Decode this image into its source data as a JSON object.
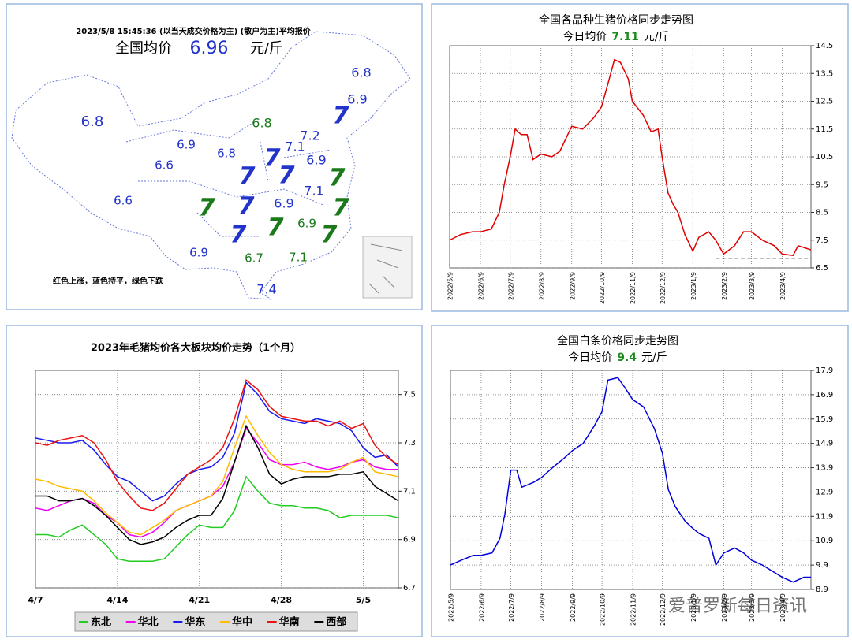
{
  "map": {
    "title": "2023/5/8  15:45:36 (以当天成交价格为主)  (散户为主)平均报价",
    "avg_label": "全国均价",
    "avg_value": 6.96,
    "avg_unit": "元/斤",
    "note": "红色上涨，蓝色持平，绿色下跌",
    "regions": [
      {
        "value": 6.8,
        "color": "#2233cc"
      },
      {
        "value": 6.9,
        "color": "#2233cc"
      },
      {
        "value": 7,
        "color": "#2233cc"
      },
      {
        "value": 6.8,
        "color": "#2233cc"
      },
      {
        "value": 6.8,
        "color": "#1a7a1a"
      },
      {
        "value": 7.2,
        "color": "#2233cc"
      },
      {
        "value": 6.9,
        "color": "#2233cc"
      },
      {
        "value": 7.1,
        "color": "#2233cc"
      },
      {
        "value": 6.8,
        "color": "#2233cc"
      },
      {
        "value": 7,
        "color": "#2233cc"
      },
      {
        "value": 6.6,
        "color": "#2233cc"
      },
      {
        "value": 6.9,
        "color": "#2233cc"
      },
      {
        "value": 7,
        "color": "#2233cc"
      },
      {
        "value": 7,
        "color": "#2233cc"
      },
      {
        "value": 7,
        "color": "#1a7a1a"
      },
      {
        "value": 7.1,
        "color": "#2233cc"
      },
      {
        "value": 6.6,
        "color": "#2233cc"
      },
      {
        "value": 7,
        "color": "#1a7a1a"
      },
      {
        "value": 7,
        "color": "#2233cc"
      },
      {
        "value": 6.9,
        "color": "#2233cc"
      },
      {
        "value": 7,
        "color": "#1a7a1a"
      },
      {
        "value": 7,
        "color": "#1a7a1a"
      },
      {
        "value": 6.9,
        "color": "#1a7a1a"
      },
      {
        "value": 7,
        "color": "#2233cc"
      },
      {
        "value": 7,
        "color": "#1a7a1a"
      },
      {
        "value": 6.9,
        "color": "#2233cc"
      },
      {
        "value": 6.7,
        "color": "#1a7a1a"
      },
      {
        "value": 7.1,
        "color": "#1a7a1a"
      },
      {
        "value": 7.4,
        "color": "#2233cc"
      }
    ]
  },
  "watermark": "爱普罗新每日资讯",
  "chart_data": [
    {
      "type": "line",
      "title": "全国各品种生猪价格同步走势图",
      "subtitle": {
        "label": "今日均价",
        "value": 7.11,
        "unit": "元/斤"
      },
      "x": [
        "2022/5/9",
        "2022/5/20",
        "2022/6/1",
        "2022/6/9",
        "2022/6/20",
        "2022/6/28",
        "2022/7/3",
        "2022/7/9",
        "2022/7/14",
        "2022/7/20",
        "2022/7/26",
        "2022/8/1",
        "2022/8/9",
        "2022/8/20",
        "2022/8/28",
        "2022/9/9",
        "2022/9/20",
        "2022/10/1",
        "2022/10/9",
        "2022/10/16",
        "2022/10/22",
        "2022/10/28",
        "2022/11/5",
        "2022/11/9",
        "2022/11/20",
        "2022/11/28",
        "2022/12/5",
        "2022/12/9",
        "2022/12/15",
        "2022/12/20",
        "2022/12/25",
        "2023/1/1",
        "2023/1/9",
        "2023/1/15",
        "2023/1/25",
        "2023/2/1",
        "2023/2/9",
        "2023/2/20",
        "2023/3/1",
        "2023/3/9",
        "2023/3/20",
        "2023/4/1",
        "2023/4/9",
        "2023/4/20",
        "2023/4/25",
        "2023/5/8"
      ],
      "series": [
        {
          "color": "#e00000",
          "values": [
            7.5,
            7.7,
            7.8,
            7.8,
            7.9,
            8.5,
            9.5,
            10.5,
            11.5,
            11.3,
            11.3,
            10.4,
            10.6,
            10.5,
            10.7,
            11.6,
            11.5,
            11.9,
            12.3,
            13.2,
            14.0,
            13.9,
            13.3,
            12.5,
            12.0,
            11.4,
            11.5,
            10.5,
            9.2,
            8.8,
            8.5,
            7.7,
            7.1,
            7.6,
            7.8,
            7.5,
            7.0,
            7.3,
            7.8,
            7.8,
            7.5,
            7.3,
            7.0,
            6.95,
            7.3,
            7.15
          ]
        }
      ],
      "hline": {
        "value": 6.85,
        "x": [
          "2023/2/1",
          "2023/5/8"
        ]
      },
      "xlim": [
        "2022/5/9",
        "2023/5/8"
      ],
      "xticks": [
        "2022/5/9",
        "2022/6/9",
        "2022/7/9",
        "2022/8/9",
        "2022/9/9",
        "2022/10/9",
        "2022/11/9",
        "2022/12/9",
        "2023/1/9",
        "2023/2/9",
        "2023/3/9",
        "2023/4/9"
      ],
      "ylim": [
        6.5,
        14.5
      ],
      "yticks": [
        6.5,
        7.5,
        8.5,
        9.5,
        10.5,
        11.5,
        12.5,
        13.5,
        14.5
      ],
      "grid": true
    },
    {
      "type": "line",
      "title": "2023年毛猪均价各大板块均价走势（1个月）",
      "categories": [
        "4/7",
        null,
        null,
        null,
        null,
        null,
        null,
        "4/14",
        null,
        null,
        null,
        null,
        null,
        null,
        "4/21",
        null,
        null,
        null,
        null,
        null,
        null,
        "4/28",
        null,
        null,
        null,
        null,
        null,
        null,
        "5/5",
        null,
        null,
        null
      ],
      "series": [
        {
          "name": "东北",
          "color": "#22cc22",
          "values": [
            6.92,
            6.92,
            6.91,
            6.94,
            6.96,
            6.92,
            6.88,
            6.82,
            6.81,
            6.81,
            6.81,
            6.82,
            6.87,
            6.92,
            6.96,
            6.95,
            6.95,
            7.02,
            7.16,
            7.1,
            7.05,
            7.04,
            7.04,
            7.03,
            7.03,
            7.02,
            6.99,
            7.0,
            7.0,
            7.0,
            7.0,
            6.99
          ]
        },
        {
          "name": "华北",
          "color": "#ee00ee",
          "values": [
            7.03,
            7.02,
            7.04,
            7.06,
            7.07,
            7.05,
            7.0,
            6.97,
            6.92,
            6.91,
            6.93,
            6.97,
            7.02,
            7.04,
            7.06,
            7.08,
            7.12,
            7.22,
            7.36,
            7.3,
            7.23,
            7.21,
            7.21,
            7.22,
            7.2,
            7.19,
            7.2,
            7.22,
            7.23,
            7.2,
            7.19,
            7.19
          ]
        },
        {
          "name": "华东",
          "color": "#1a1aee",
          "values": [
            7.32,
            7.31,
            7.3,
            7.3,
            7.31,
            7.27,
            7.21,
            7.16,
            7.14,
            7.1,
            7.06,
            7.08,
            7.13,
            7.17,
            7.19,
            7.2,
            7.24,
            7.34,
            7.55,
            7.5,
            7.43,
            7.4,
            7.39,
            7.38,
            7.4,
            7.39,
            7.38,
            7.35,
            7.28,
            7.24,
            7.25,
            7.2
          ]
        },
        {
          "name": "华中",
          "color": "#ffbb00",
          "values": [
            7.15,
            7.14,
            7.12,
            7.11,
            7.1,
            7.06,
            7.01,
            6.97,
            6.93,
            6.92,
            6.95,
            6.98,
            7.02,
            7.04,
            7.06,
            7.08,
            7.14,
            7.28,
            7.41,
            7.33,
            7.26,
            7.21,
            7.19,
            7.18,
            7.18,
            7.18,
            7.19,
            7.22,
            7.24,
            7.18,
            7.17,
            7.16
          ]
        },
        {
          "name": "华南",
          "color": "#ee1111",
          "values": [
            7.3,
            7.29,
            7.31,
            7.32,
            7.33,
            7.3,
            7.23,
            7.14,
            7.08,
            7.03,
            7.02,
            7.05,
            7.11,
            7.17,
            7.2,
            7.23,
            7.28,
            7.4,
            7.56,
            7.52,
            7.45,
            7.41,
            7.4,
            7.39,
            7.39,
            7.37,
            7.39,
            7.36,
            7.38,
            7.29,
            7.24,
            7.21
          ]
        },
        {
          "name": "西部",
          "color": "#000000",
          "values": [
            7.08,
            7.08,
            7.06,
            7.06,
            7.07,
            7.04,
            7.0,
            6.95,
            6.9,
            6.88,
            6.89,
            6.91,
            6.95,
            6.98,
            7.0,
            7.0,
            7.07,
            7.22,
            7.37,
            7.28,
            7.17,
            7.13,
            7.15,
            7.16,
            7.16,
            7.16,
            7.17,
            7.17,
            7.18,
            7.12,
            7.09,
            7.06
          ]
        }
      ],
      "ylim": [
        6.7,
        7.6
      ],
      "yticks": [
        6.7,
        6.9,
        7.1,
        7.3,
        7.5
      ],
      "grid": true,
      "legend": "bottom"
    },
    {
      "type": "line",
      "title": "全国白条价格同步走势图",
      "subtitle": {
        "label": "今日均价",
        "value": 9.4,
        "unit": "元/斤"
      },
      "x": [
        "2022/5/9",
        "2022/5/20",
        "2022/6/1",
        "2022/6/9",
        "2022/6/20",
        "2022/6/28",
        "2022/7/3",
        "2022/7/9",
        "2022/7/15",
        "2022/7/20",
        "2022/7/26",
        "2022/8/1",
        "2022/8/9",
        "2022/8/20",
        "2022/9/1",
        "2022/9/9",
        "2022/9/20",
        "2022/10/1",
        "2022/10/9",
        "2022/10/15",
        "2022/10/25",
        "2022/11/1",
        "2022/11/9",
        "2022/11/20",
        "2022/12/1",
        "2022/12/9",
        "2022/12/15",
        "2022/12/22",
        "2023/1/1",
        "2023/1/9",
        "2023/1/15",
        "2023/1/25",
        "2023/2/1",
        "2023/2/9",
        "2023/2/20",
        "2023/3/1",
        "2023/3/9",
        "2023/3/20",
        "2023/4/1",
        "2023/4/9",
        "2023/4/20",
        "2023/5/1",
        "2023/5/8"
      ],
      "series": [
        {
          "color": "#0000dd",
          "values": [
            9.9,
            10.1,
            10.3,
            10.3,
            10.4,
            11.0,
            12.0,
            13.8,
            13.8,
            13.1,
            13.2,
            13.3,
            13.5,
            13.9,
            14.3,
            14.6,
            14.9,
            15.6,
            16.2,
            17.5,
            17.6,
            17.2,
            16.7,
            16.4,
            15.5,
            14.5,
            13.0,
            12.3,
            11.7,
            11.4,
            11.2,
            11.0,
            9.9,
            10.4,
            10.6,
            10.4,
            10.1,
            9.9,
            9.6,
            9.4,
            9.2,
            9.4,
            9.4
          ]
        }
      ],
      "xlim": [
        "2022/5/9",
        "2023/5/8"
      ],
      "xticks": [
        "2022/5/9",
        "2022/6/9",
        "2022/7/9",
        "2022/8/9",
        "2022/9/9",
        "2022/10/9",
        "2022/11/9",
        "2022/12/9",
        "2023/1/9",
        "2023/2/9",
        "2023/3/9",
        "2023/4/9"
      ],
      "ylim": [
        8.9,
        17.9
      ],
      "yticks": [
        8.9,
        9.9,
        10.9,
        11.9,
        12.9,
        13.9,
        14.9,
        15.9,
        16.9,
        17.9
      ],
      "grid": true
    }
  ]
}
